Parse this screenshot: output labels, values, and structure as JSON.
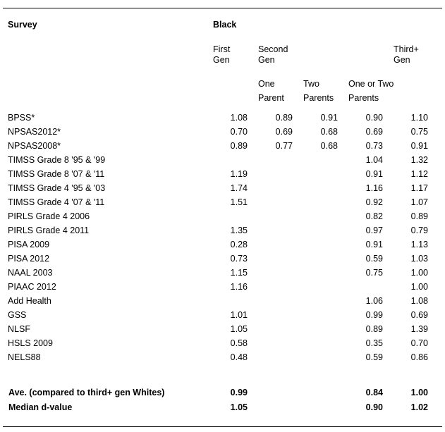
{
  "header": {
    "survey": "Survey",
    "group": "Black",
    "col_first_gen": [
      "First",
      "Gen"
    ],
    "col_second_gen": [
      "Second",
      "Gen"
    ],
    "col_third_gen": [
      "Third+",
      "Gen"
    ],
    "sub_one_parent": [
      "One",
      "Parent"
    ],
    "sub_two_parents": [
      "Two",
      "Parents"
    ],
    "sub_one_or_two": [
      "One or Two",
      "Parents"
    ]
  },
  "rows": [
    {
      "label": "BPSS*",
      "first": "1.08",
      "one": "0.89",
      "two": "0.91",
      "oneortwo": "0.90",
      "third": "1.10"
    },
    {
      "label": "NPSAS2012*",
      "first": "0.70",
      "one": "0.69",
      "two": "0.68",
      "oneortwo": "0.69",
      "third": "0.75"
    },
    {
      "label": "NPSAS2008*",
      "first": "0.89",
      "one": "0.77",
      "two": "0.68",
      "oneortwo": "0.73",
      "third": "0.91"
    },
    {
      "label": "TIMSS Grade 8 '95 & '99",
      "first": "",
      "one": "",
      "two": "",
      "oneortwo": "1.04",
      "third": "1.32"
    },
    {
      "label": "TIMSS Grade 8 '07 & '11",
      "first": "1.19",
      "one": "",
      "two": "",
      "oneortwo": "0.91",
      "third": "1.12"
    },
    {
      "label": "TIMSS Grade 4 '95 & '03",
      "first": "1.74",
      "one": "",
      "two": "",
      "oneortwo": "1.16",
      "third": "1.17"
    },
    {
      "label": "TIMSS Grade 4 '07 & '11",
      "first": "1.51",
      "one": "",
      "two": "",
      "oneortwo": "0.92",
      "third": "1.07"
    },
    {
      "label": "PIRLS Grade 4 2006",
      "first": "",
      "one": "",
      "two": "",
      "oneortwo": "0.82",
      "third": "0.89"
    },
    {
      "label": "PIRLS Grade 4 2011",
      "first": "1.35",
      "one": "",
      "two": "",
      "oneortwo": "0.97",
      "third": "0.79"
    },
    {
      "label": "PISA 2009",
      "first": "0.28",
      "one": "",
      "two": "",
      "oneortwo": "0.91",
      "third": "1.13"
    },
    {
      "label": "PISA 2012",
      "first": "0.73",
      "one": "",
      "two": "",
      "oneortwo": "0.59",
      "third": "1.03"
    },
    {
      "label": "NAAL 2003",
      "first": "1.15",
      "one": "",
      "two": "",
      "oneortwo": "0.75",
      "third": "1.00"
    },
    {
      "label": "PIAAC 2012",
      "first": "1.16",
      "one": "",
      "two": "",
      "oneortwo": "",
      "third": "1.00"
    },
    {
      "label": "Add Health",
      "first": "",
      "one": "",
      "two": "",
      "oneortwo": "1.06",
      "third": "1.08"
    },
    {
      "label": "GSS",
      "first": "1.01",
      "one": "",
      "two": "",
      "oneortwo": "0.99",
      "third": "0.69"
    },
    {
      "label": "NLSF",
      "first": "1.05",
      "one": "",
      "two": "",
      "oneortwo": "0.89",
      "third": "1.39"
    },
    {
      "label": "HSLS 2009",
      "first": "0.58",
      "one": "",
      "two": "",
      "oneortwo": "0.35",
      "third": "0.70"
    },
    {
      "label": "NELS88",
      "first": "0.48",
      "one": "",
      "two": "",
      "oneortwo": "0.59",
      "third": "0.86"
    }
  ],
  "summary": [
    {
      "label": "Ave. (compared to third+ gen Whites)",
      "first": "0.99",
      "one": "",
      "two": "",
      "oneortwo": "0.84",
      "third": "1.00"
    },
    {
      "label": "Median d-value",
      "first": "1.05",
      "one": "",
      "two": "",
      "oneortwo": "0.90",
      "third": "1.02"
    }
  ]
}
